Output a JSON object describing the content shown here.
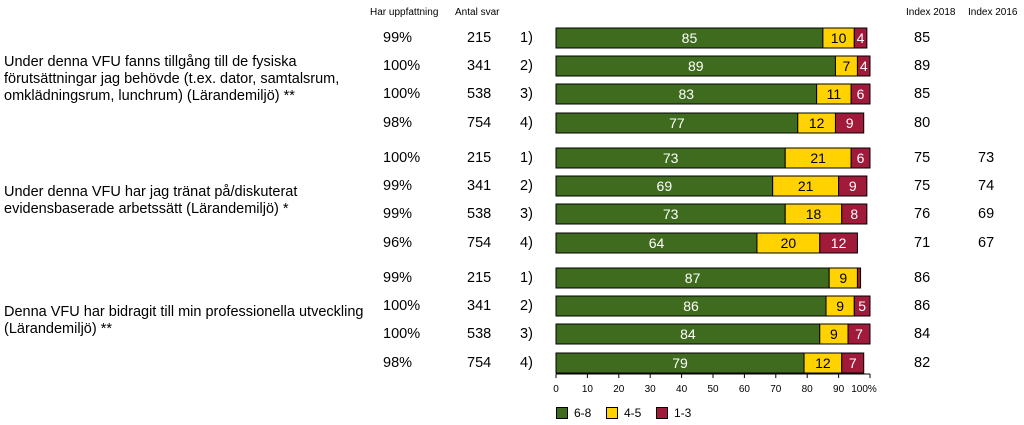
{
  "headers": {
    "uppfattning": "Har uppfattning",
    "antal": "Antal svar",
    "index2018": "Index 2018",
    "index2016": "Index 2016"
  },
  "questions": [
    "Under denna VFU fanns tillgång till de fysiska förutsättningar jag behövde (t.ex. dator, samtalsrum, omklädningsrum, lunchrum) (Lärandemiljö) **",
    "Under denna VFU har jag tränat på/diskuterat evidensbaserade arbetssätt (Lärandemiljö) *",
    "Denna VFU har bidragit till min professionella utveckling (Lärandemiljö) **"
  ],
  "colors": {
    "high": "#3f6b1e",
    "mid": "#ffd200",
    "low": "#a01a3a"
  },
  "chart_data": {
    "type": "bar",
    "orientation": "horizontal",
    "stacked": true,
    "xlim": [
      0,
      100
    ],
    "xticks": [
      "0",
      "10",
      "20",
      "30",
      "40",
      "50",
      "60",
      "70",
      "80",
      "90",
      "100%"
    ],
    "legend": [
      "6-8",
      "4-5",
      "1-3"
    ],
    "legend_position": "bottom",
    "rows": [
      {
        "pct": "99%",
        "n": "215",
        "group": "1)",
        "high": 85,
        "mid": 10,
        "low": 4,
        "i18": "85",
        "i16": ""
      },
      {
        "pct": "100%",
        "n": "341",
        "group": "2)",
        "high": 89,
        "mid": 7,
        "low": 4,
        "i18": "89",
        "i16": ""
      },
      {
        "pct": "100%",
        "n": "538",
        "group": "3)",
        "high": 83,
        "mid": 11,
        "low": 6,
        "i18": "85",
        "i16": ""
      },
      {
        "pct": "98%",
        "n": "754",
        "group": "4)",
        "high": 77,
        "mid": 12,
        "low": 9,
        "i18": "80",
        "i16": ""
      },
      {
        "pct": "100%",
        "n": "215",
        "group": "1)",
        "high": 73,
        "mid": 21,
        "low": 6,
        "i18": "75",
        "i16": "73"
      },
      {
        "pct": "99%",
        "n": "341",
        "group": "2)",
        "high": 69,
        "mid": 21,
        "low": 9,
        "i18": "75",
        "i16": "74"
      },
      {
        "pct": "99%",
        "n": "538",
        "group": "3)",
        "high": 73,
        "mid": 18,
        "low": 8,
        "i18": "76",
        "i16": "69"
      },
      {
        "pct": "96%",
        "n": "754",
        "group": "4)",
        "high": 64,
        "mid": 20,
        "low": 12,
        "i18": "71",
        "i16": "67"
      },
      {
        "pct": "99%",
        "n": "215",
        "group": "1)",
        "high": 87,
        "mid": 9,
        "low": 1,
        "i18": "86",
        "i16": ""
      },
      {
        "pct": "100%",
        "n": "341",
        "group": "2)",
        "high": 86,
        "mid": 9,
        "low": 5,
        "i18": "86",
        "i16": ""
      },
      {
        "pct": "100%",
        "n": "538",
        "group": "3)",
        "high": 84,
        "mid": 9,
        "low": 7,
        "i18": "84",
        "i16": ""
      },
      {
        "pct": "98%",
        "n": "754",
        "group": "4)",
        "high": 79,
        "mid": 12,
        "low": 7,
        "i18": "82",
        "i16": ""
      }
    ]
  }
}
